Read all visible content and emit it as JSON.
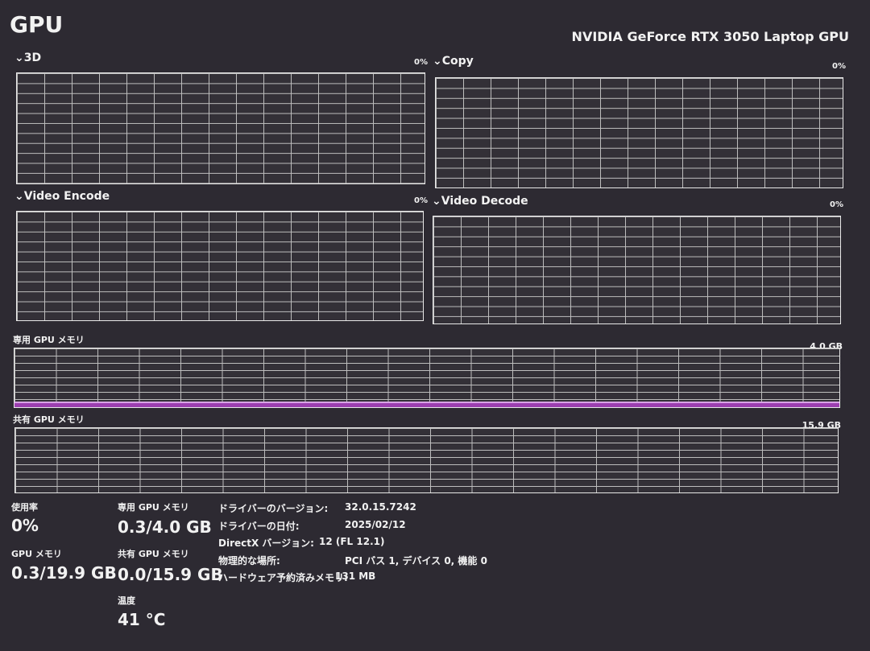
{
  "header": {
    "title": "GPU",
    "gpu_name": "NVIDIA GeForce RTX 3050 Laptop GPU"
  },
  "engines": [
    {
      "label": "3D",
      "percent": "0%"
    },
    {
      "label": "Copy",
      "percent": "0%"
    },
    {
      "label": "Video Encode",
      "percent": "0%"
    },
    {
      "label": "Video Decode",
      "percent": "0%"
    }
  ],
  "memory_graphs": {
    "dedicated": {
      "label": "専用 GPU メモリ",
      "max": "4.0 GB",
      "used_gb": 0.3,
      "total_gb": 4.0
    },
    "shared": {
      "label": "共有 GPU メモリ",
      "max": "15.9 GB",
      "used_gb": 0.0,
      "total_gb": 15.9
    }
  },
  "stats": {
    "usage": {
      "label": "使用率",
      "value": "0%"
    },
    "gpu_memory": {
      "label": "GPU メモリ",
      "value": "0.3/19.9 GB"
    },
    "dedicated": {
      "label": "専用 GPU メモリ",
      "value": "0.3/4.0 GB"
    },
    "shared": {
      "label": "共有 GPU メモリ",
      "value": "0.0/15.9 GB"
    },
    "temperature": {
      "label": "温度",
      "value": "41 °C"
    }
  },
  "info": [
    {
      "label": "ドライバーのバージョン:",
      "value": "32.0.15.7242"
    },
    {
      "label": "ドライバーの日付:",
      "value": "2025/02/12"
    },
    {
      "label": "DirectX バージョン:",
      "value": "12 (FL 12.1)"
    },
    {
      "label": "物理的な場所:",
      "value": "PCI バス 1, デバイス 0, 機能 0"
    },
    {
      "label": "ハードウェア予約済みメモリ:",
      "value": "131 MB"
    }
  ],
  "colors": {
    "background": "#2d2a32",
    "memory_fill": "#9c3fb0"
  }
}
